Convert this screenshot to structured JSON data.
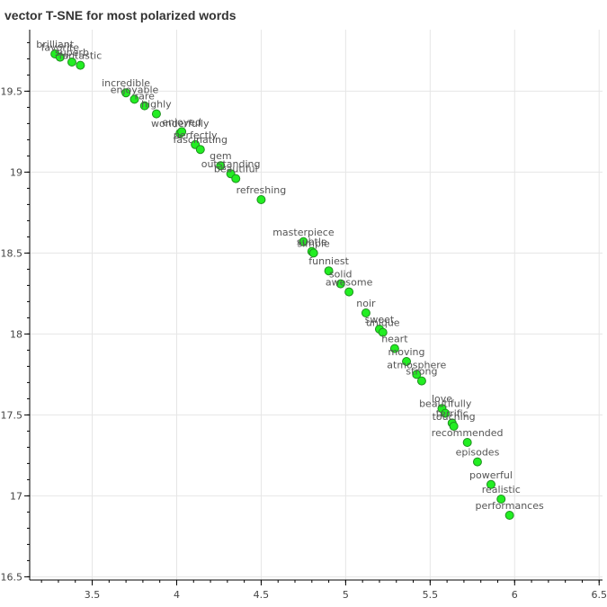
{
  "chart_data": {
    "type": "scatter",
    "title": "vector T-SNE for most polarized words",
    "xlabel": "",
    "ylabel": "",
    "xlim": [
      3.13,
      6.52
    ],
    "ylim": [
      16.48,
      19.88
    ],
    "xticks": [
      3.5,
      4,
      4.5,
      5,
      5.5,
      6,
      6.5
    ],
    "yticks": [
      16.5,
      17,
      17.5,
      18,
      18.5,
      19,
      19.5
    ],
    "xtick_labels": [
      "3.5",
      "4",
      "4.5",
      "5",
      "5.5",
      "6",
      "6.5"
    ],
    "ytick_labels": [
      "16.5",
      "17",
      "17.5",
      "18",
      "18.5",
      "19",
      "19.5"
    ],
    "grid": true,
    "marker_color": "#22ee22",
    "marker_edge": "#1f8f1f",
    "points": [
      {
        "label": "brilliant",
        "x": 3.28,
        "y": 19.73
      },
      {
        "label": "favorite",
        "x": 3.31,
        "y": 19.71
      },
      {
        "label": "superb",
        "x": 3.38,
        "y": 19.68
      },
      {
        "label": "fantastic",
        "x": 3.43,
        "y": 19.66
      },
      {
        "label": "incredible",
        "x": 3.7,
        "y": 19.49
      },
      {
        "label": "enjoyable",
        "x": 3.75,
        "y": 19.45
      },
      {
        "label": "rare",
        "x": 3.81,
        "y": 19.41
      },
      {
        "label": "highly",
        "x": 3.88,
        "y": 19.36
      },
      {
        "label": "wonderfully",
        "x": 4.02,
        "y": 19.24
      },
      {
        "label": "enjoyed",
        "x": 4.03,
        "y": 19.25
      },
      {
        "label": "perfectly",
        "x": 4.11,
        "y": 19.17
      },
      {
        "label": "fascinating",
        "x": 4.14,
        "y": 19.14
      },
      {
        "label": "gem",
        "x": 4.26,
        "y": 19.04
      },
      {
        "label": "outstanding",
        "x": 4.32,
        "y": 18.99
      },
      {
        "label": "beautiful",
        "x": 4.35,
        "y": 18.96
      },
      {
        "label": "refreshing",
        "x": 4.5,
        "y": 18.83
      },
      {
        "label": "masterpiece",
        "x": 4.75,
        "y": 18.57
      },
      {
        "label": "subtle",
        "x": 4.8,
        "y": 18.51
      },
      {
        "label": "simple",
        "x": 4.81,
        "y": 18.5
      },
      {
        "label": "funniest",
        "x": 4.9,
        "y": 18.39
      },
      {
        "label": "solid",
        "x": 4.97,
        "y": 18.31
      },
      {
        "label": "awesome",
        "x": 5.02,
        "y": 18.26
      },
      {
        "label": "noir",
        "x": 5.12,
        "y": 18.13
      },
      {
        "label": "sweet",
        "x": 5.2,
        "y": 18.03
      },
      {
        "label": "unique",
        "x": 5.22,
        "y": 18.01
      },
      {
        "label": "heart",
        "x": 5.29,
        "y": 17.91
      },
      {
        "label": "moving",
        "x": 5.36,
        "y": 17.83
      },
      {
        "label": "atmosphere",
        "x": 5.42,
        "y": 17.75
      },
      {
        "label": "strong",
        "x": 5.45,
        "y": 17.71
      },
      {
        "label": "love",
        "x": 5.57,
        "y": 17.54
      },
      {
        "label": "beautifully",
        "x": 5.59,
        "y": 17.51
      },
      {
        "label": "terrific",
        "x": 5.63,
        "y": 17.45
      },
      {
        "label": "touching",
        "x": 5.64,
        "y": 17.43
      },
      {
        "label": "recommended",
        "x": 5.72,
        "y": 17.33
      },
      {
        "label": "episodes",
        "x": 5.78,
        "y": 17.21
      },
      {
        "label": "powerful",
        "x": 5.86,
        "y": 17.07
      },
      {
        "label": "realistic",
        "x": 5.92,
        "y": 16.98
      },
      {
        "label": "performances",
        "x": 5.97,
        "y": 16.88
      }
    ]
  }
}
